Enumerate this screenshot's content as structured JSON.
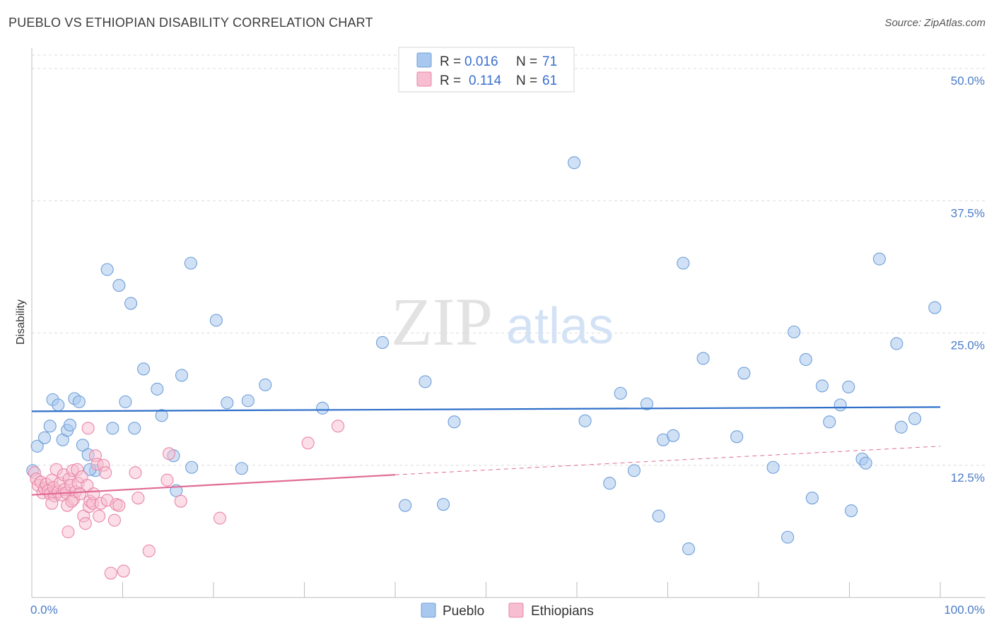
{
  "header": {
    "title": "PUEBLO VS ETHIOPIAN DISABILITY CORRELATION CHART",
    "source": "Source: ZipAtlas.com"
  },
  "watermark": {
    "zip": "ZIP",
    "atlas": "atlas"
  },
  "legend": {
    "rows": [
      {
        "r_label": "R =",
        "r_value": "0.016",
        "n_label": "N =",
        "n_value": "71",
        "color": "#a9c8ef",
        "stroke": "#6f9fd8"
      },
      {
        "r_label": "R =",
        "r_value": "0.114",
        "n_label": "N =",
        "n_value": "61",
        "color": "#f7bdd0",
        "stroke": "#e987a8"
      }
    ]
  },
  "bottom_legend": [
    {
      "label": "Pueblo",
      "color": "#a9c8ef",
      "stroke": "#6f9fd8"
    },
    {
      "label": "Ethiopians",
      "color": "#f7bdd0",
      "stroke": "#e987a8"
    }
  ],
  "chart_data": {
    "type": "scatter",
    "title": "PUEBLO VS ETHIOPIAN DISABILITY CORRELATION CHART",
    "xlabel": "",
    "ylabel": "Disability",
    "xlim": [
      0,
      100
    ],
    "ylim": [
      0,
      50
    ],
    "x_tick_labels": [
      "0.0%",
      "100.0%"
    ],
    "y_ticks": [
      12.5,
      25.0,
      37.5,
      50.0
    ],
    "y_tick_labels": [
      "12.5%",
      "25.0%",
      "37.5%",
      "50.0%"
    ],
    "grid": true,
    "legend_position": "top-center",
    "series": [
      {
        "name": "Pueblo",
        "color": "#6f9fd8",
        "fill": "#a9c8ef",
        "trend": {
          "x": [
            0,
            100
          ],
          "y": [
            17.6,
            18.0
          ],
          "style": "solid",
          "color": "#2f6fc9"
        },
        "points": [
          [
            0.1,
            12.0
          ],
          [
            0.6,
            14.3
          ],
          [
            1.4,
            15.1
          ],
          [
            2.0,
            16.2
          ],
          [
            2.3,
            18.7
          ],
          [
            2.9,
            18.2
          ],
          [
            3.4,
            14.9
          ],
          [
            3.9,
            15.8
          ],
          [
            4.2,
            16.3
          ],
          [
            4.7,
            18.8
          ],
          [
            5.2,
            18.5
          ],
          [
            5.6,
            14.4
          ],
          [
            6.2,
            13.5
          ],
          [
            7.0,
            12.0
          ],
          [
            8.3,
            31.0
          ],
          [
            8.9,
            16.0
          ],
          [
            9.6,
            29.5
          ],
          [
            10.3,
            18.5
          ],
          [
            10.9,
            27.8
          ],
          [
            11.3,
            16.0
          ],
          [
            12.3,
            21.6
          ],
          [
            13.8,
            19.7
          ],
          [
            14.3,
            17.2
          ],
          [
            15.6,
            13.4
          ],
          [
            15.9,
            10.1
          ],
          [
            16.5,
            21.0
          ],
          [
            17.5,
            31.6
          ],
          [
            17.6,
            12.3
          ],
          [
            20.3,
            26.2
          ],
          [
            21.5,
            18.4
          ],
          [
            23.1,
            12.2
          ],
          [
            23.8,
            18.6
          ],
          [
            25.7,
            20.1
          ],
          [
            32.0,
            17.9
          ],
          [
            38.6,
            24.1
          ],
          [
            41.1,
            8.7
          ],
          [
            43.3,
            20.4
          ],
          [
            45.3,
            8.8
          ],
          [
            46.5,
            16.6
          ],
          [
            59.7,
            41.1
          ],
          [
            60.9,
            16.7
          ],
          [
            63.6,
            10.8
          ],
          [
            64.8,
            19.3
          ],
          [
            66.3,
            12.0
          ],
          [
            67.7,
            18.3
          ],
          [
            69.0,
            7.7
          ],
          [
            69.5,
            14.9
          ],
          [
            70.6,
            15.3
          ],
          [
            71.7,
            31.6
          ],
          [
            72.3,
            4.6
          ],
          [
            73.9,
            22.6
          ],
          [
            77.6,
            15.2
          ],
          [
            78.4,
            21.2
          ],
          [
            81.6,
            12.3
          ],
          [
            83.2,
            5.7
          ],
          [
            83.9,
            25.1
          ],
          [
            85.2,
            22.5
          ],
          [
            85.9,
            9.4
          ],
          [
            87.0,
            20.0
          ],
          [
            87.8,
            16.6
          ],
          [
            89.0,
            18.2
          ],
          [
            89.9,
            19.9
          ],
          [
            90.2,
            8.2
          ],
          [
            91.4,
            13.1
          ],
          [
            91.8,
            12.7
          ],
          [
            93.3,
            32.0
          ],
          [
            95.2,
            24.0
          ],
          [
            95.7,
            16.1
          ],
          [
            97.2,
            16.9
          ],
          [
            99.4,
            27.4
          ],
          [
            6.4,
            12.1
          ]
        ]
      },
      {
        "name": "Ethiopians",
        "color": "#e987a8",
        "fill": "#f7bdd0",
        "trend": {
          "x": [
            0,
            40,
            100
          ],
          "y": [
            9.7,
            11.6,
            14.3
          ],
          "solid_until": 40,
          "style": "solid-then-dashed",
          "color": "#e06c95"
        },
        "points": [
          [
            0.3,
            11.8
          ],
          [
            0.5,
            11.2
          ],
          [
            0.7,
            10.6
          ],
          [
            1.0,
            10.9
          ],
          [
            1.2,
            9.9
          ],
          [
            1.4,
            10.3
          ],
          [
            1.6,
            10.7
          ],
          [
            1.8,
            10.1
          ],
          [
            2.0,
            9.8
          ],
          [
            2.2,
            11.1
          ],
          [
            2.4,
            10.4
          ],
          [
            2.5,
            9.6
          ],
          [
            2.7,
            12.1
          ],
          [
            2.9,
            10.0
          ],
          [
            3.1,
            10.8
          ],
          [
            3.3,
            9.7
          ],
          [
            3.5,
            11.6
          ],
          [
            3.6,
            10.2
          ],
          [
            3.8,
            9.9
          ],
          [
            3.9,
            8.7
          ],
          [
            4.0,
            6.2
          ],
          [
            4.1,
            11.2
          ],
          [
            4.3,
            10.6
          ],
          [
            4.5,
            12.0
          ],
          [
            4.6,
            9.3
          ],
          [
            4.8,
            10.0
          ],
          [
            5.0,
            12.1
          ],
          [
            5.1,
            10.8
          ],
          [
            5.3,
            9.8
          ],
          [
            5.5,
            11.4
          ],
          [
            5.7,
            7.7
          ],
          [
            5.9,
            7.0
          ],
          [
            6.1,
            10.6
          ],
          [
            6.2,
            16.0
          ],
          [
            6.3,
            8.6
          ],
          [
            6.4,
            9.1
          ],
          [
            6.7,
            8.9
          ],
          [
            6.8,
            9.8
          ],
          [
            7.0,
            13.4
          ],
          [
            7.2,
            12.6
          ],
          [
            7.4,
            7.7
          ],
          [
            7.6,
            8.9
          ],
          [
            7.9,
            12.5
          ],
          [
            8.1,
            11.8
          ],
          [
            8.3,
            9.2
          ],
          [
            8.7,
            2.3
          ],
          [
            9.1,
            7.3
          ],
          [
            9.3,
            8.8
          ],
          [
            9.6,
            8.7
          ],
          [
            10.1,
            2.5
          ],
          [
            11.4,
            11.8
          ],
          [
            11.7,
            9.4
          ],
          [
            12.9,
            4.4
          ],
          [
            14.9,
            11.1
          ],
          [
            15.1,
            13.6
          ],
          [
            16.4,
            9.1
          ],
          [
            20.7,
            7.5
          ],
          [
            30.4,
            14.6
          ],
          [
            33.7,
            16.2
          ],
          [
            2.2,
            8.9
          ],
          [
            4.4,
            9.1
          ]
        ]
      }
    ]
  }
}
